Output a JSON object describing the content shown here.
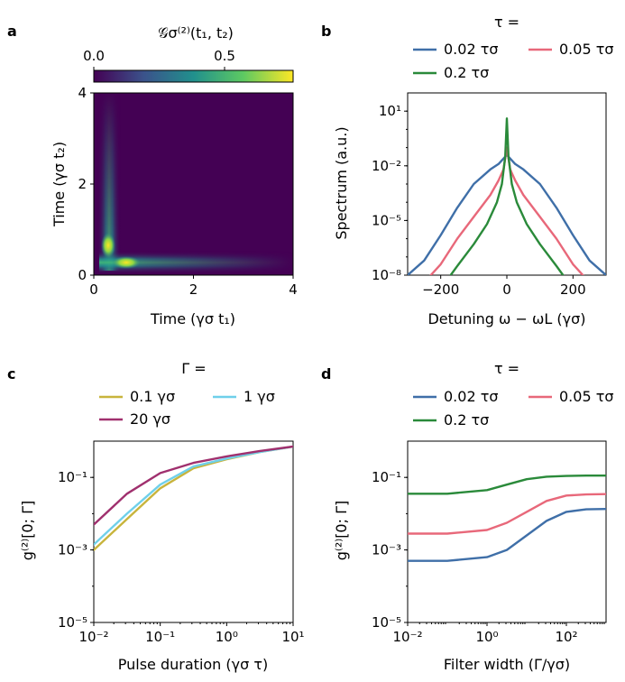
{
  "chart_data": [
    {
      "panel": "a",
      "type": "heatmap",
      "colorbar_label": "𝒢σ⁽²⁾(t₁, t₂)",
      "colorbar_ticks": [
        "0.0",
        "0.5"
      ],
      "colorbar_range": [
        0,
        0.75
      ],
      "xlabel": "Time (γσ t₁)",
      "ylabel": "Time (γσ t₂)",
      "xlim": [
        0,
        4
      ],
      "ylim": [
        0,
        4
      ],
      "xticks": [
        "0",
        "2",
        "4"
      ],
      "yticks": [
        "0",
        "2",
        "4"
      ],
      "colormap": "viridis",
      "description_points": [
        {
          "x": 0.25,
          "y": 0.6,
          "value": 0.75
        },
        {
          "x": 0.6,
          "y": 0.25,
          "value": 0.75
        }
      ]
    },
    {
      "panel": "b",
      "type": "line",
      "legend_title": "τ =",
      "xlabel": "Detuning ω − ωL (γσ)",
      "ylabel": "Spectrum (a.u.)",
      "xlim": [
        -300,
        300
      ],
      "ylim_log10": [
        -8,
        2
      ],
      "y_scale": "log",
      "xticks": [
        "−200",
        "0",
        "200"
      ],
      "yticks": [
        "10⁻⁸",
        "10⁻⁵",
        "10⁻²",
        "10¹"
      ],
      "series": [
        {
          "name": "0.02 τσ",
          "color": "#3f6fa8",
          "x": [
            -300,
            -250,
            -200,
            -150,
            -100,
            -50,
            -25,
            0,
            25,
            50,
            100,
            150,
            200,
            250,
            300
          ],
          "log10y": [
            -8.0,
            -7.2,
            -5.8,
            -4.3,
            -3.0,
            -2.2,
            -1.9,
            -1.4,
            -1.9,
            -2.2,
            -3.0,
            -4.3,
            -5.8,
            -7.2,
            -8.0
          ]
        },
        {
          "name": "0.05 τσ",
          "color": "#e8687a",
          "x": [
            -230,
            -200,
            -150,
            -100,
            -50,
            -25,
            -10,
            0,
            10,
            25,
            50,
            100,
            150,
            200,
            230
          ],
          "log10y": [
            -8.0,
            -7.4,
            -6.0,
            -4.8,
            -3.6,
            -2.8,
            -2.2,
            -1.0,
            -2.2,
            -2.8,
            -3.6,
            -4.8,
            -6.0,
            -7.4,
            -8.0
          ]
        },
        {
          "name": "0.2 τσ",
          "color": "#2a8a3a",
          "x": [
            -170,
            -150,
            -100,
            -60,
            -30,
            -15,
            -5,
            0,
            5,
            15,
            30,
            60,
            100,
            150,
            170
          ],
          "log10y": [
            -8.0,
            -7.5,
            -6.3,
            -5.2,
            -4.0,
            -3.0,
            -1.5,
            0.6,
            -1.5,
            -3.0,
            -4.0,
            -5.2,
            -6.3,
            -7.5,
            -8.0
          ]
        }
      ]
    },
    {
      "panel": "c",
      "type": "line",
      "legend_title": "Γ =",
      "xlabel": "Pulse duration (γσ τ)",
      "ylabel": "g⁽²⁾[0; Γ]",
      "x_scale": "log",
      "y_scale": "log",
      "xlim_log10": [
        -2,
        1
      ],
      "ylim_log10": [
        -5,
        0
      ],
      "xticks": [
        "10⁻²",
        "10⁻¹",
        "10⁰",
        "10¹"
      ],
      "yticks": [
        "10⁻⁵",
        "10⁻³",
        "10⁻¹"
      ],
      "series": [
        {
          "name": "0.1 γσ",
          "color": "#c8b43c",
          "log10x": [
            -2.0,
            -1.5,
            -1.0,
            -0.5,
            0.0,
            0.5,
            1.0
          ],
          "log10y": [
            -3.0,
            -2.15,
            -1.3,
            -0.75,
            -0.5,
            -0.3,
            -0.15
          ]
        },
        {
          "name": "1 γσ",
          "color": "#6fd0ea",
          "log10x": [
            -2.0,
            -1.5,
            -1.0,
            -0.5,
            0.0,
            0.5,
            1.0
          ],
          "log10y": [
            -2.85,
            -2.0,
            -1.2,
            -0.7,
            -0.48,
            -0.3,
            -0.15
          ]
        },
        {
          "name": "20 γσ",
          "color": "#a0306e",
          "log10x": [
            -2.0,
            -1.5,
            -1.0,
            -0.5,
            0.0,
            0.5,
            1.0
          ],
          "log10y": [
            -2.3,
            -1.45,
            -0.88,
            -0.6,
            -0.42,
            -0.27,
            -0.15
          ]
        }
      ]
    },
    {
      "panel": "d",
      "type": "line",
      "legend_title": "τ =",
      "xlabel": "Filter width (Γ/γσ)",
      "ylabel": "g⁽²⁾[0; Γ]",
      "x_scale": "log",
      "y_scale": "log",
      "xlim_log10": [
        -2,
        3
      ],
      "ylim_log10": [
        -5,
        0
      ],
      "xticks": [
        "10⁻²",
        "10⁰",
        "10²"
      ],
      "yticks": [
        "10⁻⁵",
        "10⁻³",
        "10⁻¹"
      ],
      "series": [
        {
          "name": "0.02 τσ",
          "color": "#3f6fa8",
          "log10x": [
            -2.0,
            -1.0,
            0.0,
            0.5,
            1.0,
            1.5,
            2.0,
            2.5,
            3.0
          ],
          "log10y": [
            -3.3,
            -3.3,
            -3.2,
            -3.0,
            -2.6,
            -2.2,
            -1.95,
            -1.88,
            -1.87
          ]
        },
        {
          "name": "0.05 τσ",
          "color": "#e8687a",
          "log10x": [
            -2.0,
            -1.0,
            0.0,
            0.5,
            1.0,
            1.5,
            2.0,
            2.5,
            3.0
          ],
          "log10y": [
            -2.55,
            -2.55,
            -2.45,
            -2.25,
            -1.95,
            -1.65,
            -1.5,
            -1.47,
            -1.46
          ]
        },
        {
          "name": "0.2 τσ",
          "color": "#2a8a3a",
          "log10x": [
            -2.0,
            -1.0,
            0.0,
            0.5,
            1.0,
            1.5,
            2.0,
            2.5,
            3.0
          ],
          "log10y": [
            -1.45,
            -1.45,
            -1.35,
            -1.2,
            -1.05,
            -0.98,
            -0.96,
            -0.95,
            -0.95
          ]
        }
      ]
    }
  ],
  "panel_labels": {
    "a": "a",
    "b": "b",
    "c": "c",
    "d": "d"
  }
}
